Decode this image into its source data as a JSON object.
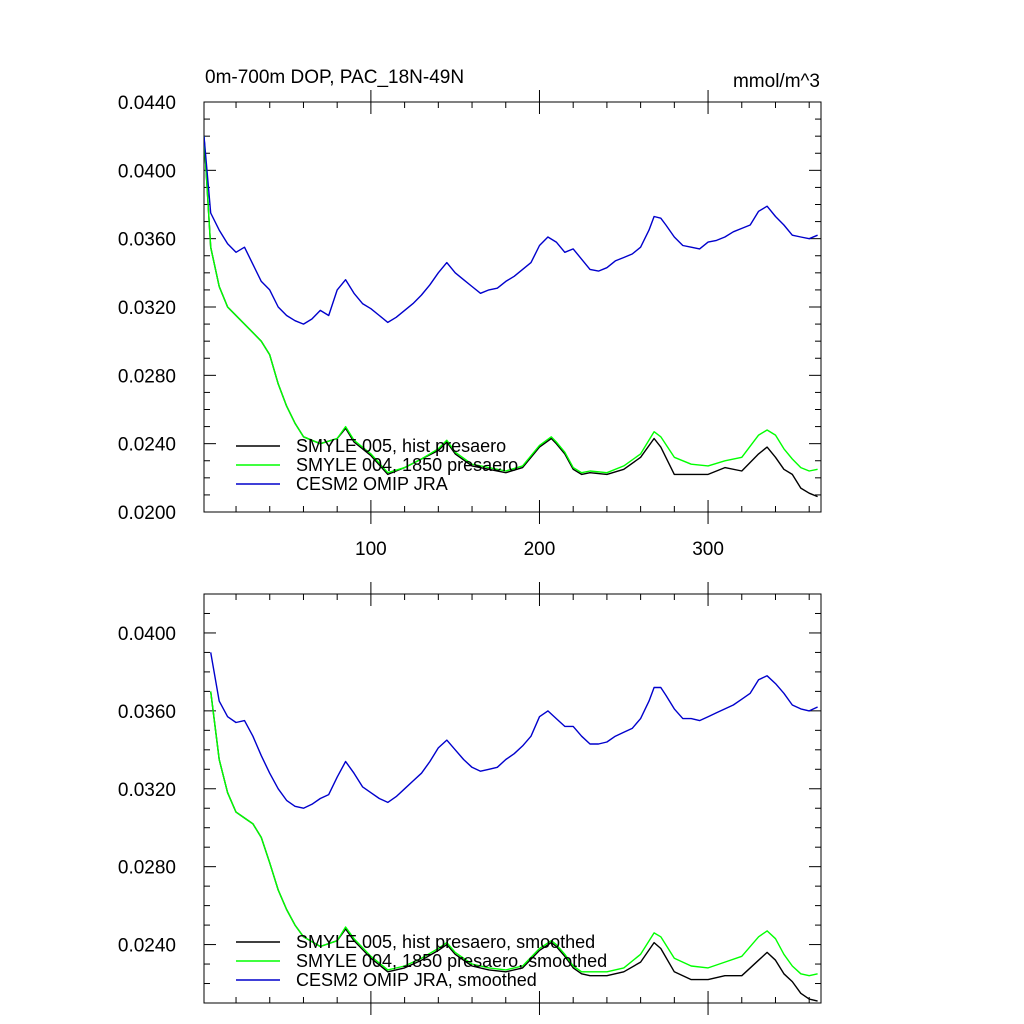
{
  "chart_data": [
    {
      "type": "line",
      "title": "0m-700m DOP, PAC_18N-49N",
      "units": "mmol/m^3",
      "xlim": [
        1,
        367
      ],
      "ylim": [
        0.02,
        0.044
      ],
      "x_ticks": [
        100,
        200,
        300
      ],
      "x_tick_labels": [
        "100",
        "200",
        "300"
      ],
      "y_ticks": [
        0.02,
        0.024,
        0.028,
        0.032,
        0.036,
        0.04,
        0.044
      ],
      "y_tick_labels": [
        "0.0200",
        "0.0240",
        "0.0280",
        "0.0320",
        "0.0360",
        "0.0400",
        "0.0440"
      ],
      "legend_position": "bottom-left",
      "series": [
        {
          "name": "SMYLE 005, hist presaero",
          "color": "#000000",
          "x": [
            1,
            5,
            10,
            15,
            20,
            25,
            30,
            35,
            40,
            45,
            50,
            55,
            60,
            70,
            80,
            85,
            90,
            100,
            110,
            120,
            130,
            140,
            145,
            150,
            160,
            170,
            180,
            190,
            200,
            207,
            210,
            215,
            220,
            225,
            230,
            240,
            250,
            260,
            268,
            272,
            280,
            290,
            300,
            310,
            320,
            330,
            335,
            340,
            345,
            350,
            355,
            360,
            365
          ],
          "values": [
            0.042,
            0.0355,
            0.0332,
            0.032,
            0.0315,
            0.031,
            0.0305,
            0.03,
            0.0292,
            0.0275,
            0.0262,
            0.0252,
            0.0244,
            0.024,
            0.0243,
            0.0249,
            0.0241,
            0.0233,
            0.0222,
            0.0226,
            0.0231,
            0.0236,
            0.0241,
            0.0234,
            0.0227,
            0.0225,
            0.0223,
            0.0226,
            0.0238,
            0.0243,
            0.024,
            0.0234,
            0.0225,
            0.0222,
            0.0223,
            0.0222,
            0.0225,
            0.0232,
            0.0243,
            0.0238,
            0.0222,
            0.0222,
            0.0222,
            0.0226,
            0.0224,
            0.0234,
            0.0238,
            0.0232,
            0.0225,
            0.0222,
            0.0214,
            0.0211,
            0.0209
          ]
        },
        {
          "name": "SMYLE 004, 1850 presaero",
          "color": "#00ff00",
          "x": [
            1,
            5,
            10,
            15,
            20,
            25,
            30,
            35,
            40,
            45,
            50,
            55,
            60,
            70,
            80,
            85,
            90,
            100,
            110,
            120,
            130,
            140,
            145,
            150,
            160,
            170,
            180,
            190,
            200,
            207,
            210,
            215,
            220,
            225,
            230,
            240,
            250,
            260,
            268,
            272,
            280,
            290,
            300,
            310,
            320,
            330,
            335,
            340,
            345,
            350,
            355,
            360,
            365
          ],
          "values": [
            0.042,
            0.0355,
            0.0332,
            0.032,
            0.0315,
            0.031,
            0.0305,
            0.03,
            0.0292,
            0.0275,
            0.0262,
            0.0252,
            0.0244,
            0.024,
            0.0243,
            0.025,
            0.0242,
            0.0234,
            0.0223,
            0.0226,
            0.0231,
            0.0237,
            0.0242,
            0.0235,
            0.0228,
            0.0226,
            0.0224,
            0.0227,
            0.0239,
            0.0244,
            0.0241,
            0.0235,
            0.0226,
            0.0223,
            0.0224,
            0.0223,
            0.0227,
            0.0234,
            0.0247,
            0.0244,
            0.0232,
            0.0228,
            0.0227,
            0.023,
            0.0232,
            0.0245,
            0.0248,
            0.0245,
            0.0237,
            0.0231,
            0.0226,
            0.0224,
            0.0225
          ]
        },
        {
          "name": "CESM2 OMIP JRA",
          "color": "#0000cc",
          "x": [
            1,
            5,
            10,
            15,
            20,
            25,
            30,
            35,
            40,
            45,
            50,
            55,
            60,
            65,
            70,
            75,
            80,
            85,
            90,
            95,
            100,
            105,
            110,
            115,
            120,
            125,
            130,
            135,
            140,
            145,
            150,
            155,
            160,
            165,
            170,
            175,
            180,
            185,
            190,
            195,
            200,
            205,
            210,
            215,
            220,
            225,
            230,
            235,
            240,
            245,
            250,
            255,
            260,
            265,
            268,
            272,
            275,
            280,
            285,
            290,
            295,
            300,
            305,
            310,
            315,
            320,
            325,
            330,
            335,
            340,
            345,
            350,
            355,
            360,
            365
          ],
          "values": [
            0.042,
            0.0375,
            0.0365,
            0.0357,
            0.0352,
            0.0355,
            0.0345,
            0.0335,
            0.033,
            0.032,
            0.0315,
            0.0312,
            0.031,
            0.0313,
            0.0318,
            0.0315,
            0.033,
            0.0336,
            0.0328,
            0.0322,
            0.0319,
            0.0315,
            0.0311,
            0.0314,
            0.0318,
            0.0322,
            0.0327,
            0.0333,
            0.034,
            0.0346,
            0.034,
            0.0336,
            0.0332,
            0.0328,
            0.033,
            0.0331,
            0.0335,
            0.0338,
            0.0342,
            0.0346,
            0.0356,
            0.0361,
            0.0358,
            0.0352,
            0.0354,
            0.0348,
            0.0342,
            0.0341,
            0.0343,
            0.0347,
            0.0349,
            0.0351,
            0.0355,
            0.0365,
            0.0373,
            0.0372,
            0.0368,
            0.0361,
            0.0356,
            0.0355,
            0.0354,
            0.0358,
            0.0359,
            0.0361,
            0.0364,
            0.0366,
            0.0368,
            0.0376,
            0.0379,
            0.0373,
            0.0368,
            0.0362,
            0.0361,
            0.036,
            0.0362
          ]
        }
      ]
    },
    {
      "type": "line",
      "xlim": [
        1,
        367
      ],
      "ylim": [
        0.021,
        0.042
      ],
      "x_ticks": [
        100,
        200,
        300
      ],
      "x_tick_labels": [],
      "y_ticks": [
        0.024,
        0.028,
        0.032,
        0.036,
        0.04
      ],
      "y_tick_labels": [
        "0.0240",
        "0.0280",
        "0.0320",
        "0.0360",
        "0.0400"
      ],
      "legend_position": "bottom-left",
      "series": [
        {
          "name": "SMYLE 005, hist presaero, smoothed",
          "color": "#000000",
          "x": [
            5,
            10,
            15,
            20,
            25,
            30,
            35,
            40,
            45,
            50,
            55,
            60,
            70,
            80,
            85,
            90,
            100,
            110,
            120,
            130,
            140,
            145,
            150,
            160,
            170,
            180,
            190,
            200,
            207,
            210,
            215,
            220,
            225,
            230,
            240,
            250,
            260,
            268,
            272,
            280,
            290,
            300,
            310,
            320,
            330,
            335,
            340,
            345,
            350,
            355,
            360,
            365
          ],
          "values": [
            0.037,
            0.0335,
            0.0318,
            0.0308,
            0.0305,
            0.0302,
            0.0295,
            0.0282,
            0.0268,
            0.0258,
            0.025,
            0.0244,
            0.0239,
            0.0242,
            0.0248,
            0.0242,
            0.0233,
            0.0226,
            0.0228,
            0.0232,
            0.0237,
            0.024,
            0.0235,
            0.0229,
            0.0227,
            0.0226,
            0.0228,
            0.0237,
            0.0241,
            0.0239,
            0.0234,
            0.0228,
            0.0225,
            0.0224,
            0.0224,
            0.0226,
            0.0231,
            0.0241,
            0.0238,
            0.0226,
            0.0222,
            0.0222,
            0.0224,
            0.0224,
            0.0232,
            0.0236,
            0.0232,
            0.0225,
            0.0221,
            0.0215,
            0.0212,
            0.0211
          ]
        },
        {
          "name": "SMYLE 004, 1850 presaero, smoothed",
          "color": "#00ff00",
          "x": [
            5,
            10,
            15,
            20,
            25,
            30,
            35,
            40,
            45,
            50,
            55,
            60,
            70,
            80,
            85,
            90,
            100,
            110,
            120,
            130,
            140,
            145,
            150,
            160,
            170,
            180,
            190,
            200,
            207,
            210,
            215,
            220,
            225,
            230,
            240,
            250,
            260,
            268,
            272,
            280,
            290,
            300,
            310,
            320,
            330,
            335,
            340,
            345,
            350,
            355,
            360,
            365
          ],
          "values": [
            0.037,
            0.0335,
            0.0318,
            0.0308,
            0.0305,
            0.0302,
            0.0295,
            0.0282,
            0.0268,
            0.0258,
            0.025,
            0.0244,
            0.0239,
            0.0242,
            0.0249,
            0.0243,
            0.0234,
            0.0227,
            0.0229,
            0.0233,
            0.0238,
            0.0241,
            0.0236,
            0.023,
            0.0228,
            0.0227,
            0.0229,
            0.0238,
            0.0242,
            0.024,
            0.0235,
            0.0229,
            0.0226,
            0.0226,
            0.0226,
            0.0228,
            0.0235,
            0.0246,
            0.0244,
            0.0233,
            0.0229,
            0.0228,
            0.0231,
            0.0234,
            0.0244,
            0.0247,
            0.0243,
            0.0235,
            0.0229,
            0.0225,
            0.0224,
            0.0225
          ]
        },
        {
          "name": "CESM2 OMIP JRA, smoothed",
          "color": "#0000cc",
          "x": [
            5,
            10,
            15,
            20,
            25,
            30,
            35,
            40,
            45,
            50,
            55,
            60,
            65,
            70,
            75,
            80,
            85,
            90,
            95,
            100,
            105,
            110,
            115,
            120,
            125,
            130,
            135,
            140,
            145,
            150,
            155,
            160,
            165,
            170,
            175,
            180,
            185,
            190,
            195,
            200,
            205,
            210,
            215,
            220,
            225,
            230,
            235,
            240,
            245,
            250,
            255,
            260,
            265,
            268,
            272,
            275,
            280,
            285,
            290,
            295,
            300,
            305,
            310,
            315,
            320,
            325,
            330,
            335,
            340,
            345,
            350,
            355,
            360,
            365
          ],
          "values": [
            0.039,
            0.0365,
            0.0357,
            0.0354,
            0.0355,
            0.0347,
            0.0337,
            0.0328,
            0.032,
            0.0314,
            0.0311,
            0.031,
            0.0312,
            0.0315,
            0.0317,
            0.0326,
            0.0334,
            0.0328,
            0.0321,
            0.0318,
            0.0315,
            0.0313,
            0.0316,
            0.032,
            0.0324,
            0.0328,
            0.0334,
            0.0341,
            0.0345,
            0.034,
            0.0335,
            0.0331,
            0.0329,
            0.033,
            0.0331,
            0.0335,
            0.0338,
            0.0342,
            0.0347,
            0.0357,
            0.036,
            0.0356,
            0.0352,
            0.0352,
            0.0347,
            0.0343,
            0.0343,
            0.0344,
            0.0347,
            0.0349,
            0.0351,
            0.0356,
            0.0365,
            0.0372,
            0.0372,
            0.0368,
            0.0361,
            0.0356,
            0.0356,
            0.0355,
            0.0357,
            0.0359,
            0.0361,
            0.0363,
            0.0366,
            0.0369,
            0.0376,
            0.0378,
            0.0374,
            0.0369,
            0.0363,
            0.0361,
            0.036,
            0.0362
          ]
        }
      ]
    }
  ]
}
